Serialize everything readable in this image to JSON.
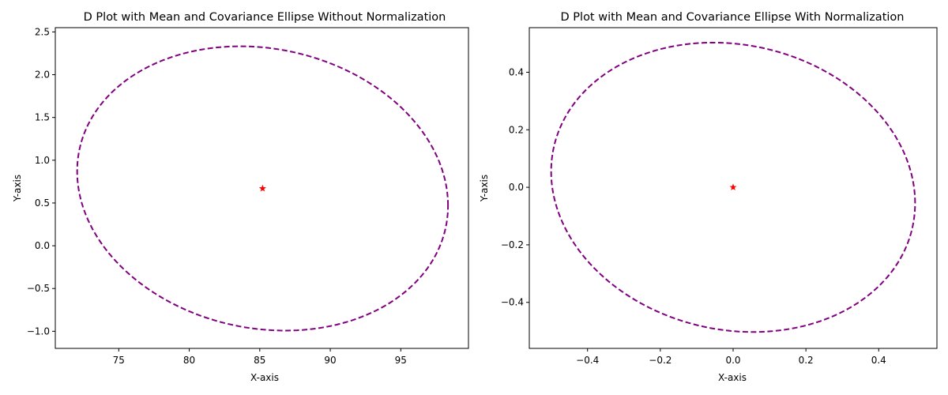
{
  "chart_data": [
    {
      "type": "scatter",
      "title": "D Plot with Mean and Covariance Ellipse Without Normalization",
      "xlabel": "X-axis",
      "ylabel": "Y-axis",
      "xlim": [
        70.5,
        99.8
      ],
      "ylim": [
        -1.2,
        2.55
      ],
      "xticks": [
        "75",
        "80",
        "85",
        "90",
        "95"
      ],
      "xtick_values": [
        75,
        80,
        85,
        90,
        95
      ],
      "yticks": [
        "−1.0",
        "−0.5",
        "0.0",
        "0.5",
        "1.0",
        "1.5",
        "2.0",
        "2.5"
      ],
      "ytick_values": [
        -1.0,
        -0.5,
        0.0,
        0.5,
        1.0,
        1.5,
        2.0,
        2.5
      ],
      "mean": {
        "x": 85.2,
        "y": 0.67
      },
      "ellipse": {
        "center": [
          85.2,
          0.67
        ],
        "semi_x": 13.15,
        "semi_y": 1.65,
        "tilt_dy": -0.2
      },
      "ellipse_color": "#800080",
      "mean_color": "#ff0000",
      "grid": false
    },
    {
      "type": "scatter",
      "title": "D Plot with Mean and Covariance Ellipse With Normalization",
      "xlabel": "X-axis",
      "ylabel": "Y-axis",
      "xlim": [
        -0.56,
        0.56
      ],
      "ylim": [
        -0.56,
        0.555
      ],
      "xticks": [
        "−0.4",
        "−0.2",
        "0.0",
        "0.2",
        "0.4"
      ],
      "xtick_values": [
        -0.4,
        -0.2,
        0.0,
        0.2,
        0.4
      ],
      "yticks": [
        "−0.4",
        "−0.2",
        "0.0",
        "0.2",
        "0.4"
      ],
      "ytick_values": [
        -0.4,
        -0.2,
        0.0,
        0.2,
        0.4
      ],
      "mean": {
        "x": 0.0,
        "y": 0.0
      },
      "ellipse": {
        "center": [
          0.0,
          0.0
        ],
        "semi_x": 0.5,
        "semi_y": 0.5,
        "tilt_dy": -0.055
      },
      "ellipse_color": "#800080",
      "mean_color": "#ff0000",
      "grid": false
    }
  ]
}
